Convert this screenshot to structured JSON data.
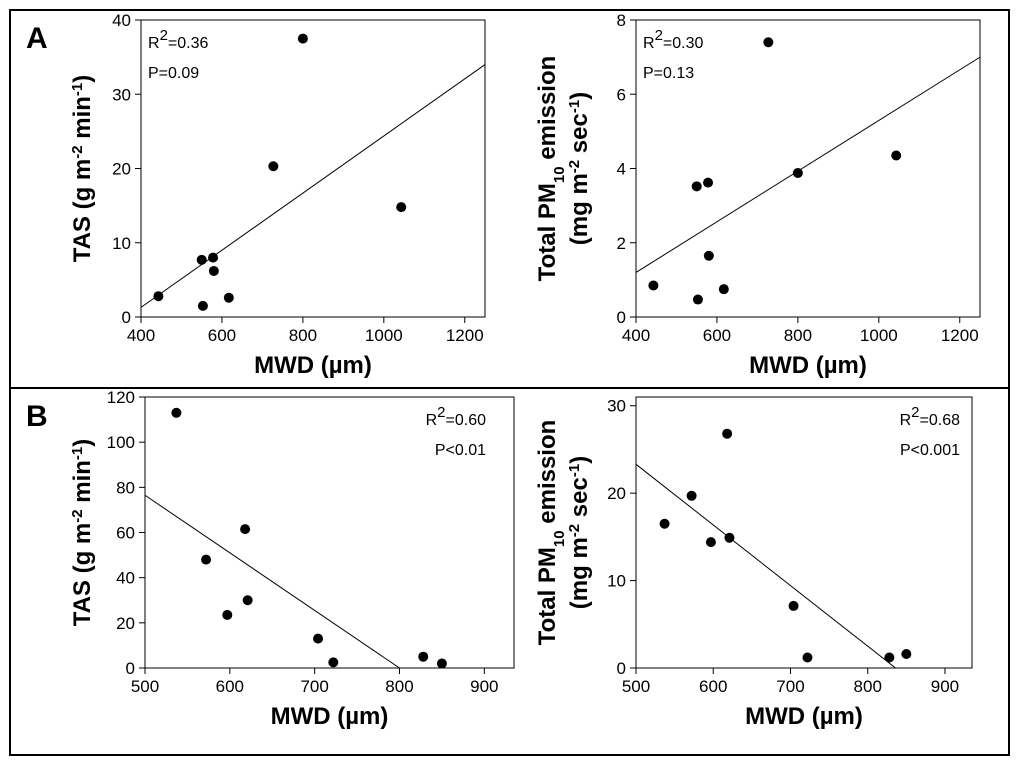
{
  "panel_labels": {
    "a": "A",
    "b": "B"
  },
  "chart_data": [
    {
      "panel": "A",
      "type": "scatter",
      "ylabel": "TAS (g m-2 min-1)",
      "xlabel": "MWD (µm)",
      "xlim": [
        400,
        1250
      ],
      "ylim": [
        0,
        40
      ],
      "xticks": [
        400,
        600,
        800,
        1000,
        1200
      ],
      "yticks": [
        0,
        10,
        20,
        30,
        40
      ],
      "points": [
        {
          "x": 443,
          "y": 2.8
        },
        {
          "x": 550,
          "y": 7.7
        },
        {
          "x": 553,
          "y": 1.5
        },
        {
          "x": 578,
          "y": 8.0
        },
        {
          "x": 580,
          "y": 6.2
        },
        {
          "x": 617,
          "y": 2.6
        },
        {
          "x": 727,
          "y": 20.3
        },
        {
          "x": 800,
          "y": 37.5
        },
        {
          "x": 1043,
          "y": 14.8
        }
      ],
      "fit": {
        "x": [
          400,
          1250
        ],
        "y": [
          1.3,
          34.0
        ]
      },
      "stats": {
        "r2": "R2=0.36",
        "p": "P=0.09"
      }
    },
    {
      "panel": "A",
      "type": "scatter",
      "ylabel": "Total PM10 emission (mg m-2 sec-1)",
      "xlabel": "MWD (µm)",
      "xlim": [
        400,
        1250
      ],
      "ylim": [
        0,
        8
      ],
      "xticks": [
        400,
        600,
        800,
        1000,
        1200
      ],
      "yticks": [
        0,
        2,
        4,
        6,
        8
      ],
      "points": [
        {
          "x": 443,
          "y": 0.85
        },
        {
          "x": 550,
          "y": 3.52
        },
        {
          "x": 553,
          "y": 0.47
        },
        {
          "x": 578,
          "y": 3.62
        },
        {
          "x": 580,
          "y": 1.65
        },
        {
          "x": 617,
          "y": 0.75
        },
        {
          "x": 727,
          "y": 7.4
        },
        {
          "x": 800,
          "y": 3.88
        },
        {
          "x": 1043,
          "y": 4.35
        }
      ],
      "fit": {
        "x": [
          400,
          1250
        ],
        "y": [
          1.2,
          7.0
        ]
      },
      "stats": {
        "r2": "R2=0.30",
        "p": "P=0.13"
      }
    },
    {
      "panel": "B",
      "type": "scatter",
      "ylabel": "TAS (g m-2 min-1)",
      "xlabel": "MWD (µm)",
      "xlim": [
        500,
        935
      ],
      "ylim": [
        0,
        120
      ],
      "xticks": [
        500,
        600,
        700,
        800,
        900
      ],
      "yticks": [
        0,
        20,
        40,
        60,
        80,
        100,
        120
      ],
      "points": [
        {
          "x": 537,
          "y": 113
        },
        {
          "x": 572,
          "y": 48
        },
        {
          "x": 597,
          "y": 23.5
        },
        {
          "x": 618,
          "y": 61.5
        },
        {
          "x": 621,
          "y": 30
        },
        {
          "x": 704,
          "y": 13
        },
        {
          "x": 722,
          "y": 2.5
        },
        {
          "x": 828,
          "y": 5
        },
        {
          "x": 850,
          "y": 2
        }
      ],
      "fit": {
        "x": [
          500,
          800
        ],
        "y": [
          76.5,
          0
        ]
      },
      "stats": {
        "r2": "R2=0.60",
        "p": "P<0.01"
      }
    },
    {
      "panel": "B",
      "type": "scatter",
      "ylabel": "Total PM10 emission (mg m-2 sec-1)",
      "xlabel": "MWD (µm)",
      "xlim": [
        500,
        935
      ],
      "ylim": [
        0,
        31
      ],
      "xticks": [
        500,
        600,
        700,
        800,
        900
      ],
      "yticks": [
        0,
        10,
        20,
        30
      ],
      "points": [
        {
          "x": 537,
          "y": 16.5
        },
        {
          "x": 572,
          "y": 19.7
        },
        {
          "x": 597,
          "y": 14.4
        },
        {
          "x": 618,
          "y": 26.8
        },
        {
          "x": 621,
          "y": 14.9
        },
        {
          "x": 704,
          "y": 7.1
        },
        {
          "x": 722,
          "y": 1.2
        },
        {
          "x": 828,
          "y": 1.2
        },
        {
          "x": 850,
          "y": 1.6
        }
      ],
      "fit": {
        "x": [
          500,
          836
        ],
        "y": [
          23.3,
          0
        ]
      },
      "stats": {
        "r2": "R2=0.68",
        "p": "P<0.001"
      }
    }
  ]
}
